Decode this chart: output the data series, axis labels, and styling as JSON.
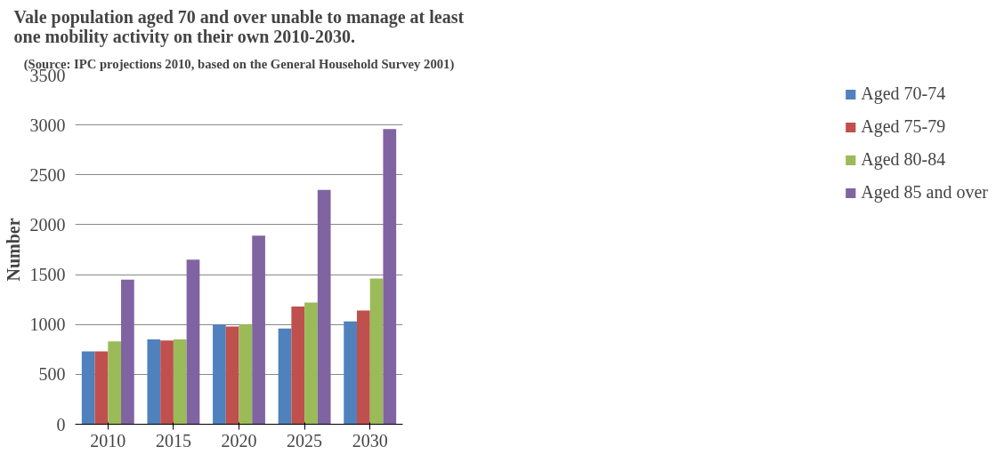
{
  "chart_data": {
    "type": "bar",
    "title": "Vale population aged 70 and over unable to manage at least\none mobility activity on their own 2010-2030.",
    "annotations": [
      "(Source: IPC projections 2010, based on the General Household Survey 2001)"
    ],
    "ylabel": "Number",
    "categories": [
      "2010",
      "2015",
      "2020",
      "2025",
      "2030"
    ],
    "series": [
      {
        "name": "Aged 70-74",
        "color": "#4f81bd",
        "values": [
          730,
          850,
          1000,
          960,
          1030
        ]
      },
      {
        "name": "Aged 75-79",
        "color": "#c0504d",
        "values": [
          730,
          840,
          980,
          1180,
          1140
        ]
      },
      {
        "name": "Aged 80-84",
        "color": "#9bbb59",
        "values": [
          830,
          850,
          1000,
          1220,
          1460
        ]
      },
      {
        "name": "Aged 85 and over",
        "color": "#8064a2",
        "values": [
          1450,
          1650,
          1890,
          2350,
          2960
        ]
      }
    ],
    "ylim": [
      0,
      3500
    ],
    "yticks": [
      0,
      500,
      1000,
      1500,
      2000,
      2500,
      3000,
      3500
    ],
    "grid": "y",
    "legend": "right"
  }
}
